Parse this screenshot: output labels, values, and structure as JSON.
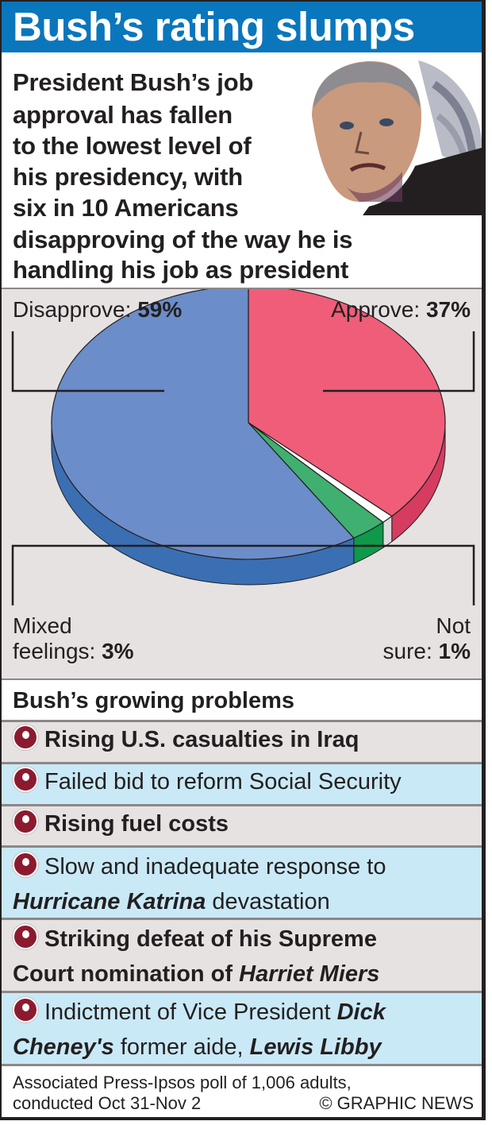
{
  "title": "Bush’s rating slumps",
  "intro": {
    "lines": [
      "President Bush’s job",
      "approval has fallen",
      "to the lowest level of",
      "his presidency, with",
      "six in 10 Americans",
      "disapproving of the way he is",
      "handling his job as president"
    ],
    "photo_icon": "president-portrait"
  },
  "chart_data": {
    "type": "pie",
    "title": "",
    "slices": [
      {
        "label": "Approve:",
        "value": 37,
        "value_label": "37%",
        "color": "#ef5d79",
        "side_color": "#d63c60"
      },
      {
        "label": "Not sure:",
        "value": 1,
        "value_label": "1%",
        "color": "#ffffff",
        "side_color": "#dcdcdc"
      },
      {
        "label": "Mixed feelings:",
        "value": 3,
        "value_label": "3%",
        "color": "#3fb070",
        "side_color": "#0f9a4a"
      },
      {
        "label": "Disapprove:",
        "value": 59,
        "value_label": "59%",
        "color": "#6b8dc9",
        "side_color": "#3a6fb4"
      }
    ],
    "labels": {
      "disapprove": {
        "text": "Disapprove:",
        "value": "59%"
      },
      "approve": {
        "text": "Approve:",
        "value": "37%"
      },
      "mixed_line1": "Mixed",
      "mixed_line2": "feelings:",
      "mixed_value": "3%",
      "notsure_line1": "Not",
      "notsure_line2": "sure:",
      "notsure_value": "1%"
    }
  },
  "problems": {
    "heading": "Bush’s growing problems",
    "r1": "Rising U.S. casualties in Iraq",
    "r2": "Failed bid to reform Social Security",
    "r3": "Rising fuel costs",
    "r4": {
      "a": "Slow and inadequate response to",
      "b": "Hurricane Katrina",
      "c": " devastation"
    },
    "r5": {
      "a": "Striking defeat of his Supreme",
      "b": "Court nomination of ",
      "c": "Harriet Miers"
    },
    "r6": {
      "a": "Indictment of Vice President ",
      "b": "Dick",
      "c": "Cheney's",
      "d": " former aide, ",
      "e": "Lewis Libby"
    }
  },
  "footer": {
    "source_line1": "Associated Press-Ipsos poll of 1,006 adults,",
    "source_line2": "conducted Oct 31-Nov 2",
    "credit": "© GRAPHIC NEWS"
  },
  "colors": {
    "title_bar": "#0a76bc",
    "bullet": "#8c1a2f",
    "row_grey": "#e6e2e2",
    "row_blue": "#c9e9f7"
  }
}
